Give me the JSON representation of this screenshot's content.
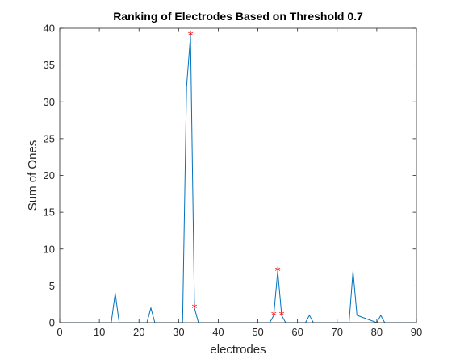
{
  "chart_data": {
    "type": "line",
    "title": "Ranking of Electrodes Based on Threshold 0.7",
    "xlabel": "electrodes",
    "ylabel": "Sum of Ones",
    "xlim": [
      0,
      90
    ],
    "ylim": [
      0,
      40
    ],
    "xticks": [
      "0",
      "10",
      "20",
      "30",
      "40",
      "50",
      "60",
      "70",
      "80",
      "90"
    ],
    "yticks": [
      "0",
      "5",
      "10",
      "15",
      "20",
      "25",
      "30",
      "35",
      "40"
    ],
    "grid": false,
    "series": [
      {
        "color": "#0072BD",
        "x": [
          1,
          13,
          14,
          15,
          22,
          23,
          24,
          31,
          32,
          33,
          34,
          35,
          53,
          54,
          55,
          56,
          57,
          62,
          63,
          64,
          73,
          74,
          75,
          80,
          81,
          82,
          90
        ],
        "y": [
          0,
          0,
          4,
          0,
          0,
          2,
          0,
          0,
          32,
          39,
          2,
          0,
          0,
          1,
          7,
          1,
          0,
          0,
          1,
          0,
          0,
          7,
          1,
          0,
          1,
          0,
          0
        ]
      }
    ],
    "markers": {
      "color": "#FF0000",
      "symbol": "*",
      "points": [
        {
          "x": 33,
          "y": 39
        },
        {
          "x": 34,
          "y": 2
        },
        {
          "x": 54,
          "y": 1
        },
        {
          "x": 55,
          "y": 7
        },
        {
          "x": 56,
          "y": 1
        }
      ]
    }
  }
}
